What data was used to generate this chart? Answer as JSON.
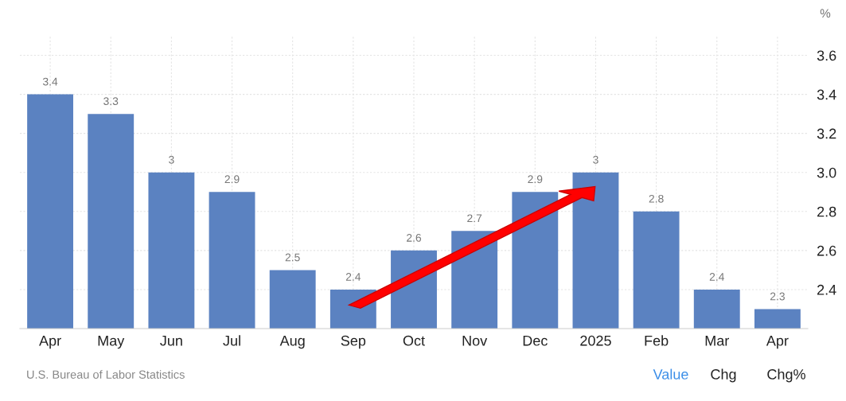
{
  "chart_data": {
    "type": "bar",
    "categories": [
      "Apr",
      "May",
      "Jun",
      "Jul",
      "Aug",
      "Sep",
      "Oct",
      "Nov",
      "Dec",
      "2025",
      "Feb",
      "Mar",
      "Apr"
    ],
    "values": [
      3.4,
      3.3,
      3,
      2.9,
      2.5,
      2.4,
      2.6,
      2.7,
      2.9,
      3,
      2.8,
      2.4,
      2.3
    ],
    "value_labels": [
      "3.4",
      "3.3",
      "3",
      "2.9",
      "2.5",
      "2.4",
      "2.6",
      "2.7",
      "2.9",
      "3",
      "2.8",
      "2.4",
      "2.3"
    ],
    "color": "#5b82c1",
    "ylabel": "%",
    "ylim": [
      2.2,
      3.7
    ],
    "yticks": [
      2.4,
      2.6,
      2.8,
      {
        "value": 3,
        "label": "3.0"
      },
      3.2,
      3.4,
      3.6
    ],
    "grid": true,
    "annotations": [
      "U.S. Bureau of Labor Statistics",
      "Value",
      "Chg",
      "Chg%"
    ]
  }
}
